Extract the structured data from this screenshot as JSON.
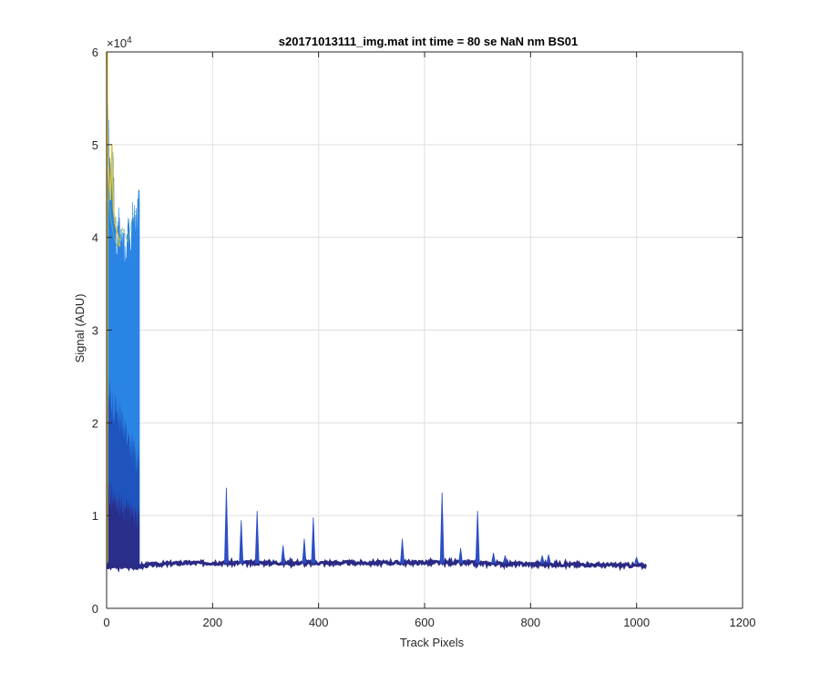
{
  "chart_data": {
    "type": "line",
    "title": "s20171013111_img.mat int time = 80 se  NaN nm BS01",
    "xlabel": "Track Pixels",
    "ylabel": "Signal (ADU)",
    "xlim": [
      0,
      1200
    ],
    "ylim": [
      0,
      60000
    ],
    "y_exponent_label": "×10",
    "y_exponent_power": "4",
    "x_ticks": [
      0,
      200,
      400,
      600,
      800,
      1000,
      1200
    ],
    "x_tick_labels": [
      "0",
      "200",
      "400",
      "600",
      "800",
      "1000",
      "1200"
    ],
    "y_ticks": [
      0,
      10000,
      20000,
      30000,
      40000,
      50000,
      60000
    ],
    "y_tick_labels": [
      "0",
      "1",
      "2",
      "3",
      "4",
      "5",
      "6"
    ],
    "grid": true,
    "colors": {
      "high_band": "#1f7ee3",
      "mid_band": "#1f4fb8",
      "low_band": "#2b2a85",
      "peak": "#e0c23a",
      "baseline": "#2b2a85",
      "spike": "#2c4fc4"
    },
    "bright_region": {
      "x_start": 0,
      "x_end": 62,
      "upper_envelope": [
        [
          0,
          60000
        ],
        [
          2,
          55000
        ],
        [
          5,
          48000
        ],
        [
          8,
          46000
        ],
        [
          10,
          50000
        ],
        [
          13,
          45000
        ],
        [
          16,
          41000
        ],
        [
          19,
          38000
        ],
        [
          22,
          42000
        ],
        [
          26,
          39000
        ],
        [
          30,
          41000
        ],
        [
          35,
          37000
        ],
        [
          40,
          40000
        ],
        [
          45,
          39000
        ],
        [
          50,
          42000
        ],
        [
          55,
          40000
        ],
        [
          58,
          43000
        ],
        [
          62,
          43500
        ]
      ],
      "mid_envelope": [
        [
          0,
          25000
        ],
        [
          10,
          22000
        ],
        [
          20,
          21000
        ],
        [
          30,
          20500
        ],
        [
          40,
          18000
        ],
        [
          50,
          17000
        ],
        [
          62,
          16000
        ]
      ],
      "low_envelope": [
        [
          0,
          13000
        ],
        [
          10,
          12000
        ],
        [
          20,
          11500
        ],
        [
          30,
          11000
        ],
        [
          40,
          10500
        ],
        [
          50,
          10000
        ],
        [
          62,
          9500
        ]
      ]
    },
    "baseline": [
      [
        0,
        4500
      ],
      [
        62,
        4500
      ],
      [
        80,
        4700
      ],
      [
        150,
        4900
      ],
      [
        300,
        4900
      ],
      [
        500,
        4900
      ],
      [
        650,
        4950
      ],
      [
        750,
        4800
      ],
      [
        900,
        4700
      ],
      [
        1020,
        4600
      ]
    ],
    "spikes": [
      {
        "x": 226,
        "y": 13000
      },
      {
        "x": 254,
        "y": 9500
      },
      {
        "x": 284,
        "y": 10500
      },
      {
        "x": 333,
        "y": 6800
      },
      {
        "x": 373,
        "y": 7500
      },
      {
        "x": 390,
        "y": 9800
      },
      {
        "x": 558,
        "y": 7500
      },
      {
        "x": 633,
        "y": 12500
      },
      {
        "x": 700,
        "y": 10500
      },
      {
        "x": 668,
        "y": 6500
      },
      {
        "x": 730,
        "y": 6000
      },
      {
        "x": 752,
        "y": 5700
      },
      {
        "x": 822,
        "y": 5700
      },
      {
        "x": 834,
        "y": 5800
      },
      {
        "x": 1000,
        "y": 5500
      }
    ]
  }
}
